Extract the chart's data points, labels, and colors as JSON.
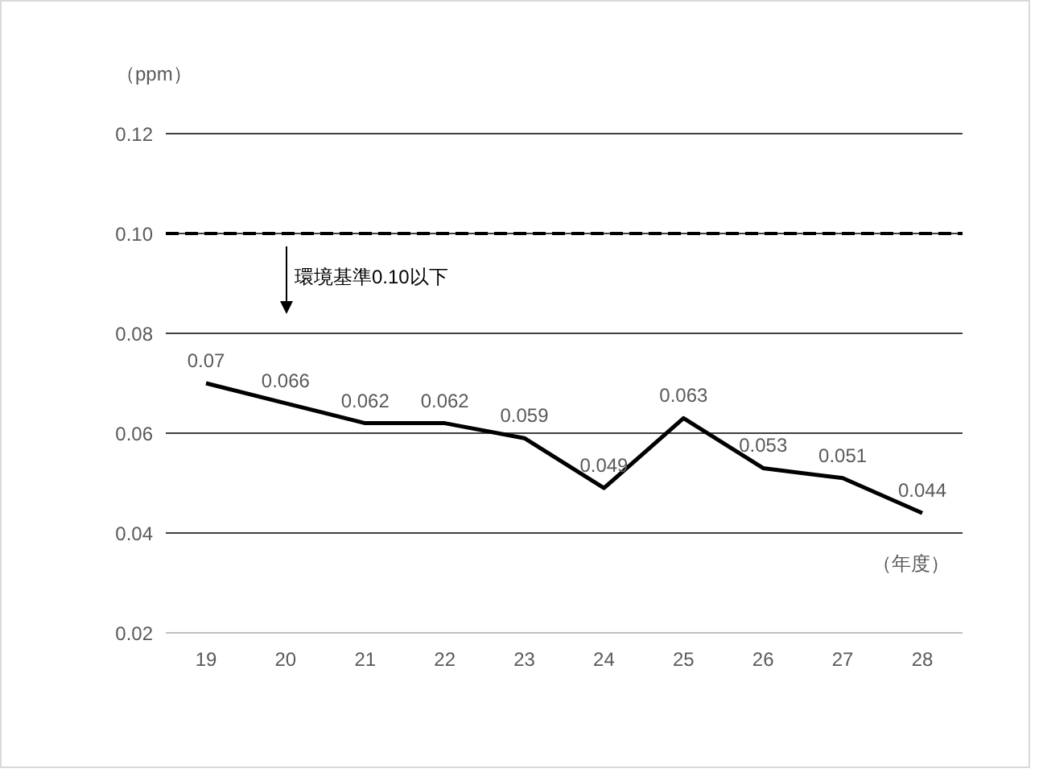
{
  "chart_data": {
    "type": "line",
    "ylabel": "（ppm）",
    "xlabel": "（年度）",
    "categories": [
      "19",
      "20",
      "21",
      "22",
      "23",
      "24",
      "25",
      "26",
      "27",
      "28"
    ],
    "series": [
      {
        "color": "#000000",
        "values": [
          0.07,
          0.066,
          0.062,
          0.062,
          0.059,
          0.049,
          0.063,
          0.053,
          0.051,
          0.044
        ]
      }
    ],
    "ylim": [
      0.02,
      0.12
    ],
    "yticks": [
      {
        "value": 0.02,
        "label": "0.02"
      },
      {
        "value": 0.04,
        "label": "0.04"
      },
      {
        "value": 0.06,
        "label": "0.06"
      },
      {
        "value": 0.08,
        "label": "0.08"
      },
      {
        "value": 0.1,
        "label": "0.10"
      },
      {
        "value": 0.12,
        "label": "0.12"
      }
    ],
    "ref_lines": [
      {
        "axis": "y",
        "value": 0.1,
        "label": "環境基準0.10以下",
        "color": "#000000",
        "line_style": "dashed"
      }
    ],
    "grid": "y",
    "legend": false,
    "marker": "none",
    "line_style": "solid",
    "data_labels": true
  }
}
